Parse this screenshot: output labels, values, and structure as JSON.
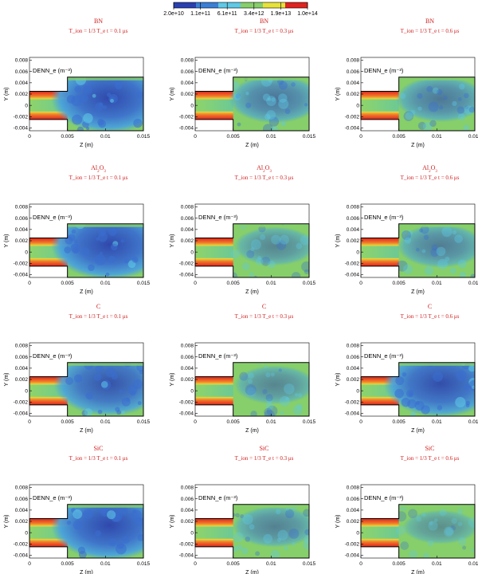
{
  "chart_data": {
    "type": "heatmap",
    "quantity_label": "DENN_e (m⁻³)",
    "colorbar": {
      "ticks": [
        "2.0e+10",
        "1.1e+11",
        "6.1e+11",
        "3.4e+12",
        "1.9e+13",
        "1.0e+14"
      ],
      "colors": [
        "#2a3fb0",
        "#3a7fd6",
        "#5fc9e6",
        "#86cf6a",
        "#e7e23a",
        "#e0231e"
      ],
      "scale": "log"
    },
    "xlabel": "Z (m)",
    "ylabel": "Y (m)",
    "xlim": [
      0,
      0.015
    ],
    "ylim": [
      -0.0045,
      0.0085
    ],
    "xticks": [
      "0",
      "0.005",
      "0.01",
      "0.015"
    ],
    "yticks": [
      "-0.004",
      "-0.002",
      "0",
      "0.002",
      "0.004",
      "0.006",
      "0.008"
    ],
    "condition_text": "T_ion = 1/3 T_e",
    "rows": [
      {
        "material": "BN",
        "material_sub": "",
        "panels": [
          {
            "time": "t = 0.1 μs",
            "plume": 0.9
          },
          {
            "time": "t = 0.3 μs",
            "plume": 0.45
          },
          {
            "time": "t = 0.6 μs",
            "plume": 0.4
          }
        ]
      },
      {
        "material": "Al",
        "material_sub": "2",
        "material_suffix": "O",
        "material_sub2": "3",
        "panels": [
          {
            "time": "t = 0.1 μs",
            "plume": 0.9
          },
          {
            "time": "t = 0.3 μs",
            "plume": 0.25
          },
          {
            "time": "t = 0.6 μs",
            "plume": 0.35
          }
        ]
      },
      {
        "material": "C",
        "material_sub": "",
        "panels": [
          {
            "time": "t = 0.1 μs",
            "plume": 0.8
          },
          {
            "time": "t = 0.3 μs",
            "plume": 0.25
          },
          {
            "time": "t = 0.6 μs",
            "plume": 0.85
          }
        ]
      },
      {
        "material": "SiC",
        "material_sub": "",
        "panels": [
          {
            "time": "t = 0.1 μs",
            "plume": 0.9
          },
          {
            "time": "t = 0.3 μs",
            "plume": 0.3
          },
          {
            "time": "t = 0.6 μs",
            "plume": 0.15
          }
        ]
      }
    ]
  }
}
